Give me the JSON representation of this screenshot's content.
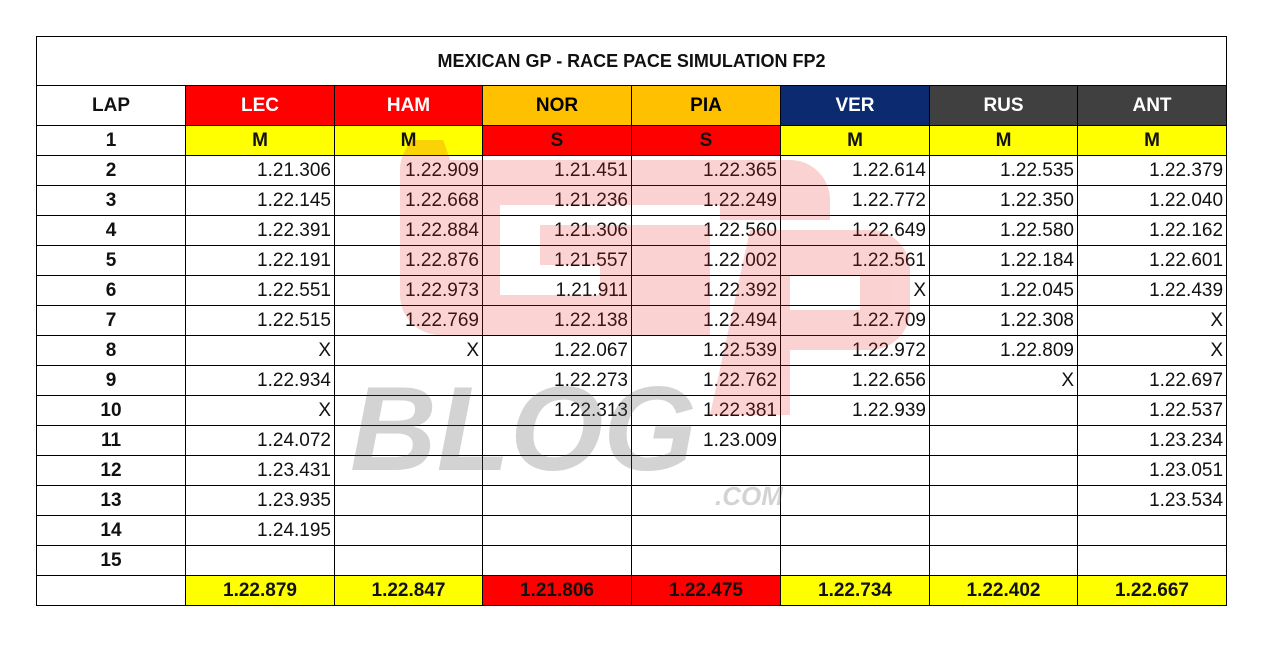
{
  "title": "MEXICAN GP - RACE PACE SIMULATION FP2",
  "lap_header": "LAP",
  "drivers": [
    {
      "code": "LEC",
      "bg": "#ff0000",
      "fg": "#ffffff"
    },
    {
      "code": "HAM",
      "bg": "#ff0000",
      "fg": "#ffffff"
    },
    {
      "code": "NOR",
      "bg": "#ffc000",
      "fg": "#000000"
    },
    {
      "code": "PIA",
      "bg": "#ffc000",
      "fg": "#000000"
    },
    {
      "code": "VER",
      "bg": "#0b2a6f",
      "fg": "#ffffff"
    },
    {
      "code": "RUS",
      "bg": "#404040",
      "fg": "#ffffff"
    },
    {
      "code": "ANT",
      "bg": "#404040",
      "fg": "#ffffff"
    }
  ],
  "tyres": [
    {
      "label": "M",
      "bg": "#ffff00"
    },
    {
      "label": "M",
      "bg": "#ffff00"
    },
    {
      "label": "S",
      "bg": "#ff0000"
    },
    {
      "label": "S",
      "bg": "#ff0000"
    },
    {
      "label": "M",
      "bg": "#ffff00"
    },
    {
      "label": "M",
      "bg": "#ffff00"
    },
    {
      "label": "M",
      "bg": "#ffff00"
    }
  ],
  "first_lap": "1",
  "laps": [
    {
      "lap": "2",
      "times": [
        "1.21.306",
        "1.22.909",
        "1.21.451",
        "1.22.365",
        "1.22.614",
        "1.22.535",
        "1.22.379"
      ]
    },
    {
      "lap": "3",
      "times": [
        "1.22.145",
        "1.22.668",
        "1.21.236",
        "1.22.249",
        "1.22.772",
        "1.22.350",
        "1.22.040"
      ]
    },
    {
      "lap": "4",
      "times": [
        "1.22.391",
        "1.22.884",
        "1.21.306",
        "1.22.560",
        "1.22.649",
        "1.22.580",
        "1.22.162"
      ]
    },
    {
      "lap": "5",
      "times": [
        "1.22.191",
        "1.22.876",
        "1.21.557",
        "1.22.002",
        "1.22.561",
        "1.22.184",
        "1.22.601"
      ]
    },
    {
      "lap": "6",
      "times": [
        "1.22.551",
        "1.22.973",
        "1.21.911",
        "1.22.392",
        "X",
        "1.22.045",
        "1.22.439"
      ]
    },
    {
      "lap": "7",
      "times": [
        "1.22.515",
        "1.22.769",
        "1.22.138",
        "1.22.494",
        "1.22.709",
        "1.22.308",
        "X"
      ]
    },
    {
      "lap": "8",
      "times": [
        "X",
        "X",
        "1.22.067",
        "1.22.539",
        "1.22.972",
        "1.22.809",
        "X"
      ]
    },
    {
      "lap": "9",
      "times": [
        "1.22.934",
        "",
        "1.22.273",
        "1.22.762",
        "1.22.656",
        "X",
        "1.22.697"
      ]
    },
    {
      "lap": "10",
      "times": [
        "X",
        "",
        "1.22.313",
        "1.22.381",
        "1.22.939",
        "",
        "1.22.537"
      ]
    },
    {
      "lap": "11",
      "times": [
        "1.24.072",
        "",
        "",
        "1.23.009",
        "",
        "",
        "1.23.234"
      ]
    },
    {
      "lap": "12",
      "times": [
        "1.23.431",
        "",
        "",
        "",
        "",
        "",
        "1.23.051"
      ]
    },
    {
      "lap": "13",
      "times": [
        "1.23.935",
        "",
        "",
        "",
        "",
        "",
        "1.23.534"
      ]
    },
    {
      "lap": "14",
      "times": [
        "1.24.195",
        "",
        "",
        "",
        "",
        "",
        ""
      ]
    },
    {
      "lap": "15",
      "times": [
        "",
        "",
        "",
        "",
        "",
        "",
        ""
      ]
    }
  ],
  "averages": [
    {
      "value": "1.22.879",
      "bg": "#ffff00"
    },
    {
      "value": "1.22.847",
      "bg": "#ffff00"
    },
    {
      "value": "1.21.806",
      "bg": "#ff0000"
    },
    {
      "value": "1.22.475",
      "bg": "#ff0000"
    },
    {
      "value": "1.22.734",
      "bg": "#ffff00"
    },
    {
      "value": "1.22.402",
      "bg": "#ffff00"
    },
    {
      "value": "1.22.667",
      "bg": "#ffff00"
    }
  ],
  "watermark": {
    "main": "BLOG",
    "sub": ".COM",
    "logo": "GP"
  }
}
